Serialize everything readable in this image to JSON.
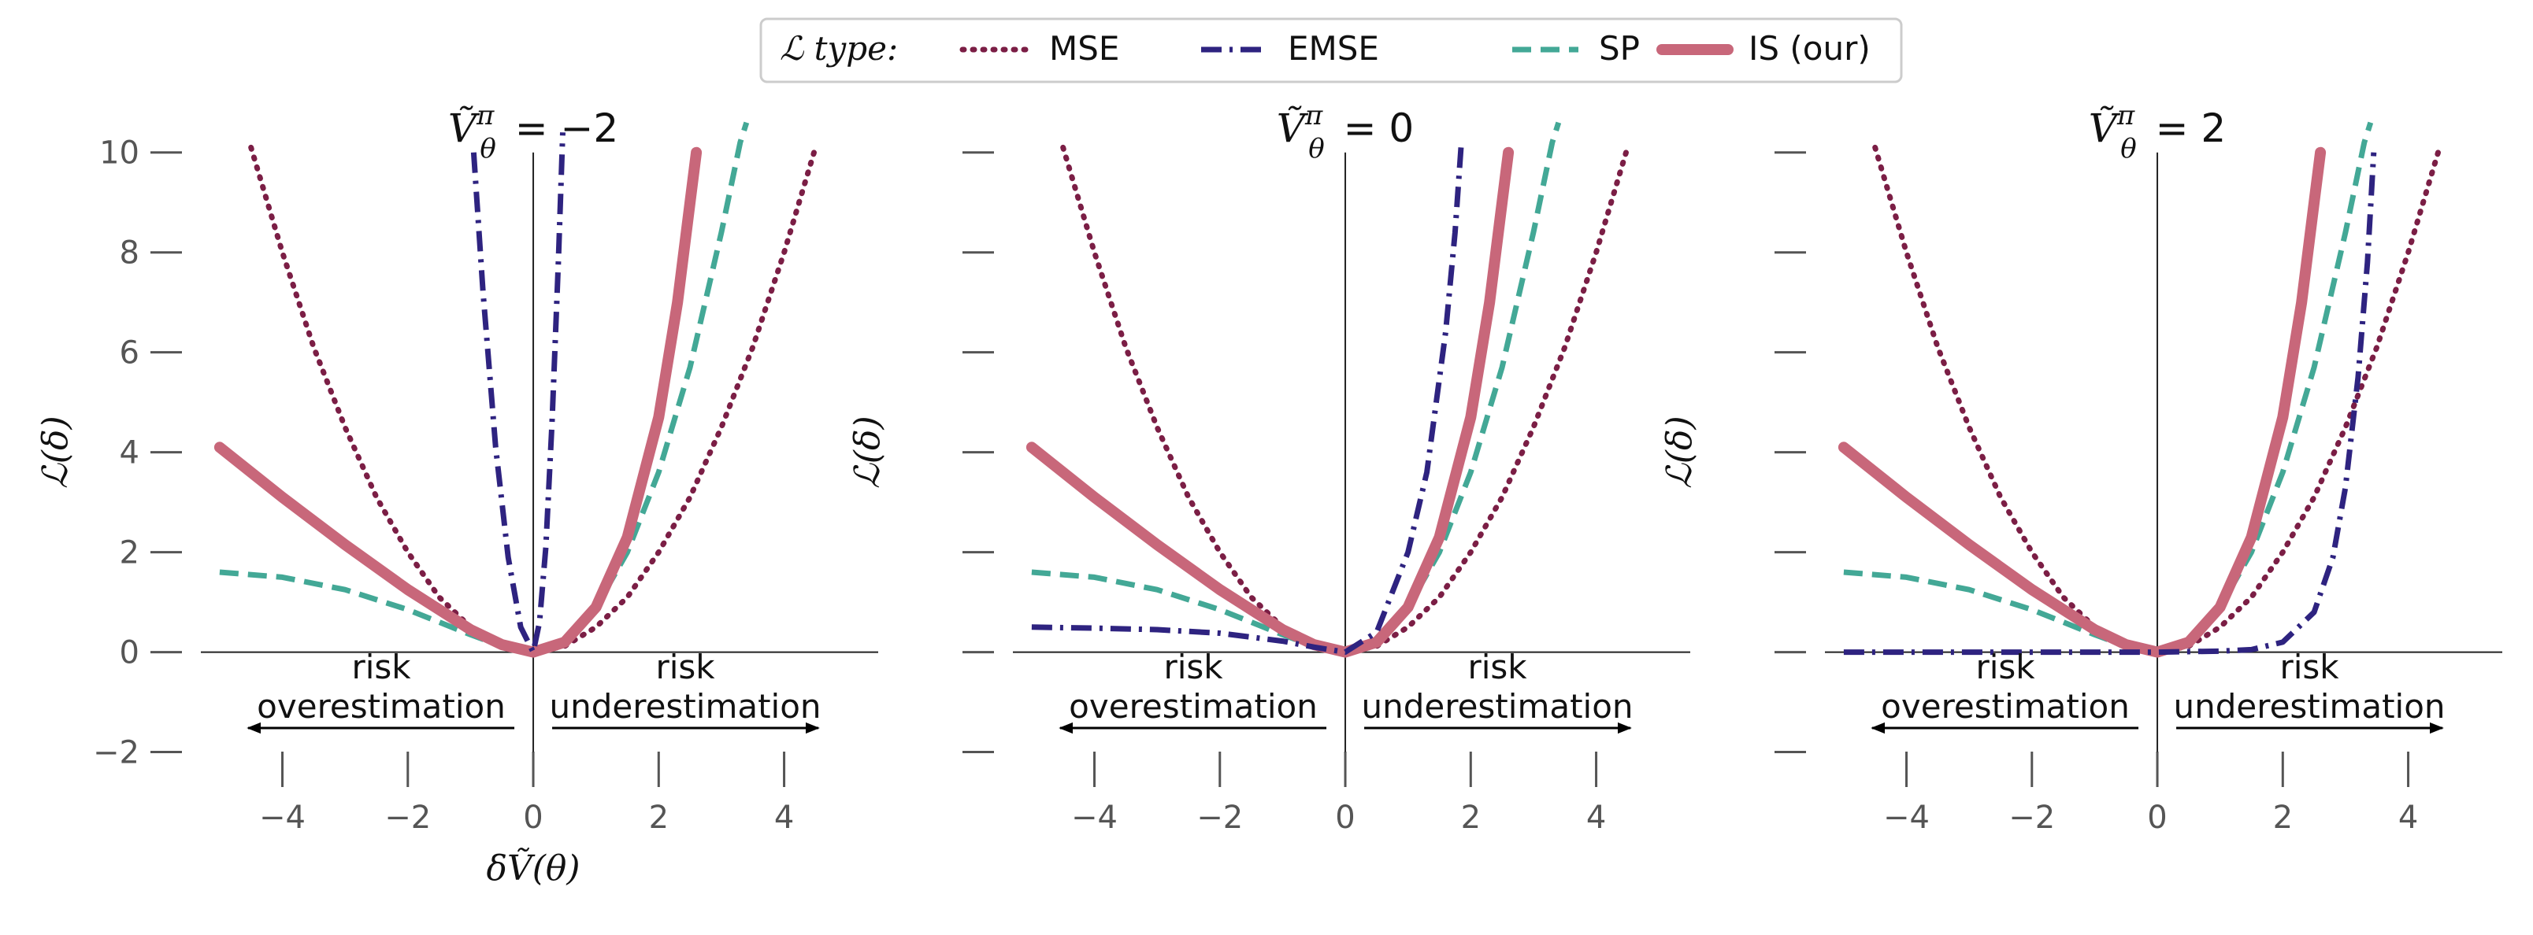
{
  "legend": {
    "title": "ℒ type:",
    "entries": [
      {
        "label": "MSE",
        "color": "#7b1e45",
        "style": "dotted"
      },
      {
        "label": "EMSE",
        "color": "#2e2380",
        "style": "dashdot"
      },
      {
        "label": "SP",
        "color": "#43a896",
        "style": "dashed"
      },
      {
        "label": "IS (our)",
        "color": "#c8677a",
        "style": "solid-thick"
      }
    ]
  },
  "annotations": {
    "left_line1": "risk",
    "left_line2": "overestimation",
    "right_line1": "risk",
    "right_line2": "underestimation"
  },
  "chart_data": [
    {
      "type": "line",
      "title": "Ṽθπ = −2",
      "title_parts": {
        "base": "Ṽ",
        "sup": "π",
        "sub": "θ",
        "value": "= −2"
      },
      "xlabel": "δṼ(θ)",
      "ylabel": "ℒ(δ)",
      "xlim": [
        -5.3,
        5.5
      ],
      "ylim": [
        -2.7,
        10.5
      ],
      "xticks": [
        -4,
        -2,
        0,
        2,
        4
      ],
      "xtick_labels": [
        "−4",
        "−2",
        "0",
        "2",
        "4"
      ],
      "yticks": [
        -2,
        0,
        2,
        4,
        6,
        8,
        10
      ],
      "ytick_labels": [
        "−2",
        "0",
        "2",
        "4",
        "6",
        "8",
        "10"
      ],
      "grid": false,
      "series": [
        {
          "name": "MSE",
          "x": [
            -4.5,
            -4,
            -3.5,
            -3,
            -2.5,
            -2,
            -1.5,
            -1,
            -0.5,
            0,
            0.5,
            1,
            1.5,
            2,
            2.5,
            3,
            3.5,
            4,
            4.5
          ],
          "y": [
            10.1,
            8.0,
            6.1,
            4.5,
            3.1,
            2.0,
            1.1,
            0.5,
            0.12,
            0,
            0.12,
            0.5,
            1.1,
            2.0,
            3.1,
            4.5,
            6.1,
            8.0,
            10.1
          ]
        },
        {
          "name": "EMSE",
          "x": [
            -0.95,
            -0.8,
            -0.6,
            -0.4,
            -0.2,
            0,
            0.1,
            0.2,
            0.3,
            0.4,
            0.47
          ],
          "y": [
            10.0,
            7.2,
            4.1,
            1.9,
            0.5,
            0,
            0.6,
            2.1,
            4.6,
            7.8,
            10.4
          ]
        },
        {
          "name": "SP",
          "x": [
            -5,
            -4,
            -3,
            -2,
            -1.5,
            -1,
            -0.5,
            0,
            0.5,
            1,
            1.5,
            2,
            2.5,
            3,
            3.3,
            3.4
          ],
          "y": [
            1.6,
            1.5,
            1.25,
            0.85,
            0.6,
            0.35,
            0.12,
            0,
            0.2,
            0.9,
            2.0,
            3.6,
            5.7,
            8.4,
            10.2,
            10.6
          ]
        },
        {
          "name": "IS (our)",
          "x": [
            -5,
            -4,
            -3,
            -2,
            -1,
            -0.5,
            0,
            0.5,
            1,
            1.5,
            2,
            2.3,
            2.5,
            2.6
          ],
          "y": [
            4.1,
            3.1,
            2.15,
            1.25,
            0.45,
            0.15,
            0,
            0.2,
            0.9,
            2.3,
            4.7,
            7.0,
            9.0,
            10.0
          ]
        }
      ]
    },
    {
      "type": "line",
      "title": "Ṽθπ = 0",
      "title_parts": {
        "base": "Ṽ",
        "sup": "π",
        "sub": "θ",
        "value": "= 0"
      },
      "xlabel": "",
      "ylabel": "ℒ(δ)",
      "xlim": [
        -5.3,
        5.5
      ],
      "ylim": [
        -2.7,
        10.5
      ],
      "xticks": [
        -4,
        -2,
        0,
        2,
        4
      ],
      "xtick_labels": [
        "−4",
        "−2",
        "0",
        "2",
        "4"
      ],
      "yticks": [
        -2,
        0,
        2,
        4,
        6,
        8,
        10
      ],
      "ytick_labels": [
        "",
        "",
        "",
        "",
        "",
        "",
        ""
      ],
      "grid": false,
      "series": [
        {
          "name": "MSE",
          "x": [
            -4.5,
            -4,
            -3.5,
            -3,
            -2.5,
            -2,
            -1.5,
            -1,
            -0.5,
            0,
            0.5,
            1,
            1.5,
            2,
            2.5,
            3,
            3.5,
            4,
            4.5
          ],
          "y": [
            10.1,
            8.0,
            6.1,
            4.5,
            3.1,
            2.0,
            1.1,
            0.5,
            0.12,
            0,
            0.12,
            0.5,
            1.1,
            2.0,
            3.1,
            4.5,
            6.1,
            8.0,
            10.1
          ]
        },
        {
          "name": "EMSE",
          "x": [
            -5,
            -4,
            -3,
            -2,
            -1,
            -0.5,
            0,
            0.5,
            1,
            1.3,
            1.6,
            1.75,
            1.85
          ],
          "y": [
            0.5,
            0.48,
            0.45,
            0.38,
            0.22,
            0.1,
            0,
            0.4,
            2.0,
            3.6,
            6.4,
            8.4,
            10.2
          ]
        },
        {
          "name": "SP",
          "x": [
            -5,
            -4,
            -3,
            -2,
            -1.5,
            -1,
            -0.5,
            0,
            0.5,
            1,
            1.5,
            2,
            2.5,
            3,
            3.3,
            3.4
          ],
          "y": [
            1.6,
            1.5,
            1.25,
            0.85,
            0.6,
            0.35,
            0.12,
            0,
            0.2,
            0.9,
            2.0,
            3.6,
            5.7,
            8.4,
            10.2,
            10.6
          ]
        },
        {
          "name": "IS (our)",
          "x": [
            -5,
            -4,
            -3,
            -2,
            -1,
            -0.5,
            0,
            0.5,
            1,
            1.5,
            2,
            2.3,
            2.5,
            2.6
          ],
          "y": [
            4.1,
            3.1,
            2.15,
            1.25,
            0.45,
            0.15,
            0,
            0.2,
            0.9,
            2.3,
            4.7,
            7.0,
            9.0,
            10.0
          ]
        }
      ]
    },
    {
      "type": "line",
      "title": "Ṽθπ = 2",
      "title_parts": {
        "base": "Ṽ",
        "sup": "π",
        "sub": "θ",
        "value": "= 2"
      },
      "xlabel": "",
      "ylabel": "ℒ(δ)",
      "xlim": [
        -5.3,
        5.5
      ],
      "ylim": [
        -2.7,
        10.5
      ],
      "xticks": [
        -4,
        -2,
        0,
        2,
        4
      ],
      "xtick_labels": [
        "−4",
        "−2",
        "0",
        "2",
        "4"
      ],
      "yticks": [
        -2,
        0,
        2,
        4,
        6,
        8,
        10
      ],
      "ytick_labels": [
        "",
        "",
        "",
        "",
        "",
        "",
        ""
      ],
      "grid": false,
      "series": [
        {
          "name": "MSE",
          "x": [
            -4.5,
            -4,
            -3.5,
            -3,
            -2.5,
            -2,
            -1.5,
            -1,
            -0.5,
            0,
            0.5,
            1,
            1.5,
            2,
            2.5,
            3,
            3.5,
            4,
            4.5
          ],
          "y": [
            10.1,
            8.0,
            6.1,
            4.5,
            3.1,
            2.0,
            1.1,
            0.5,
            0.12,
            0,
            0.12,
            0.5,
            1.1,
            2.0,
            3.1,
            4.5,
            6.1,
            8.0,
            10.1
          ]
        },
        {
          "name": "EMSE",
          "x": [
            -5,
            -3,
            -1,
            0,
            1,
            1.5,
            2,
            2.5,
            2.8,
            3.0,
            3.2,
            3.35,
            3.45
          ],
          "y": [
            0,
            0,
            0,
            0,
            0.02,
            0.05,
            0.2,
            0.8,
            1.9,
            3.3,
            5.5,
            7.8,
            10.0
          ]
        },
        {
          "name": "SP",
          "x": [
            -5,
            -4,
            -3,
            -2,
            -1.5,
            -1,
            -0.5,
            0,
            0.5,
            1,
            1.5,
            2,
            2.5,
            3,
            3.3,
            3.4
          ],
          "y": [
            1.6,
            1.5,
            1.25,
            0.85,
            0.6,
            0.35,
            0.12,
            0,
            0.2,
            0.9,
            2.0,
            3.6,
            5.7,
            8.4,
            10.2,
            10.6
          ]
        },
        {
          "name": "IS (our)",
          "x": [
            -5,
            -4,
            -3,
            -2,
            -1,
            -0.5,
            0,
            0.5,
            1,
            1.5,
            2,
            2.3,
            2.5,
            2.6
          ],
          "y": [
            4.1,
            3.1,
            2.15,
            1.25,
            0.45,
            0.15,
            0,
            0.2,
            0.9,
            2.3,
            4.7,
            7.0,
            9.0,
            10.0
          ]
        }
      ]
    }
  ]
}
